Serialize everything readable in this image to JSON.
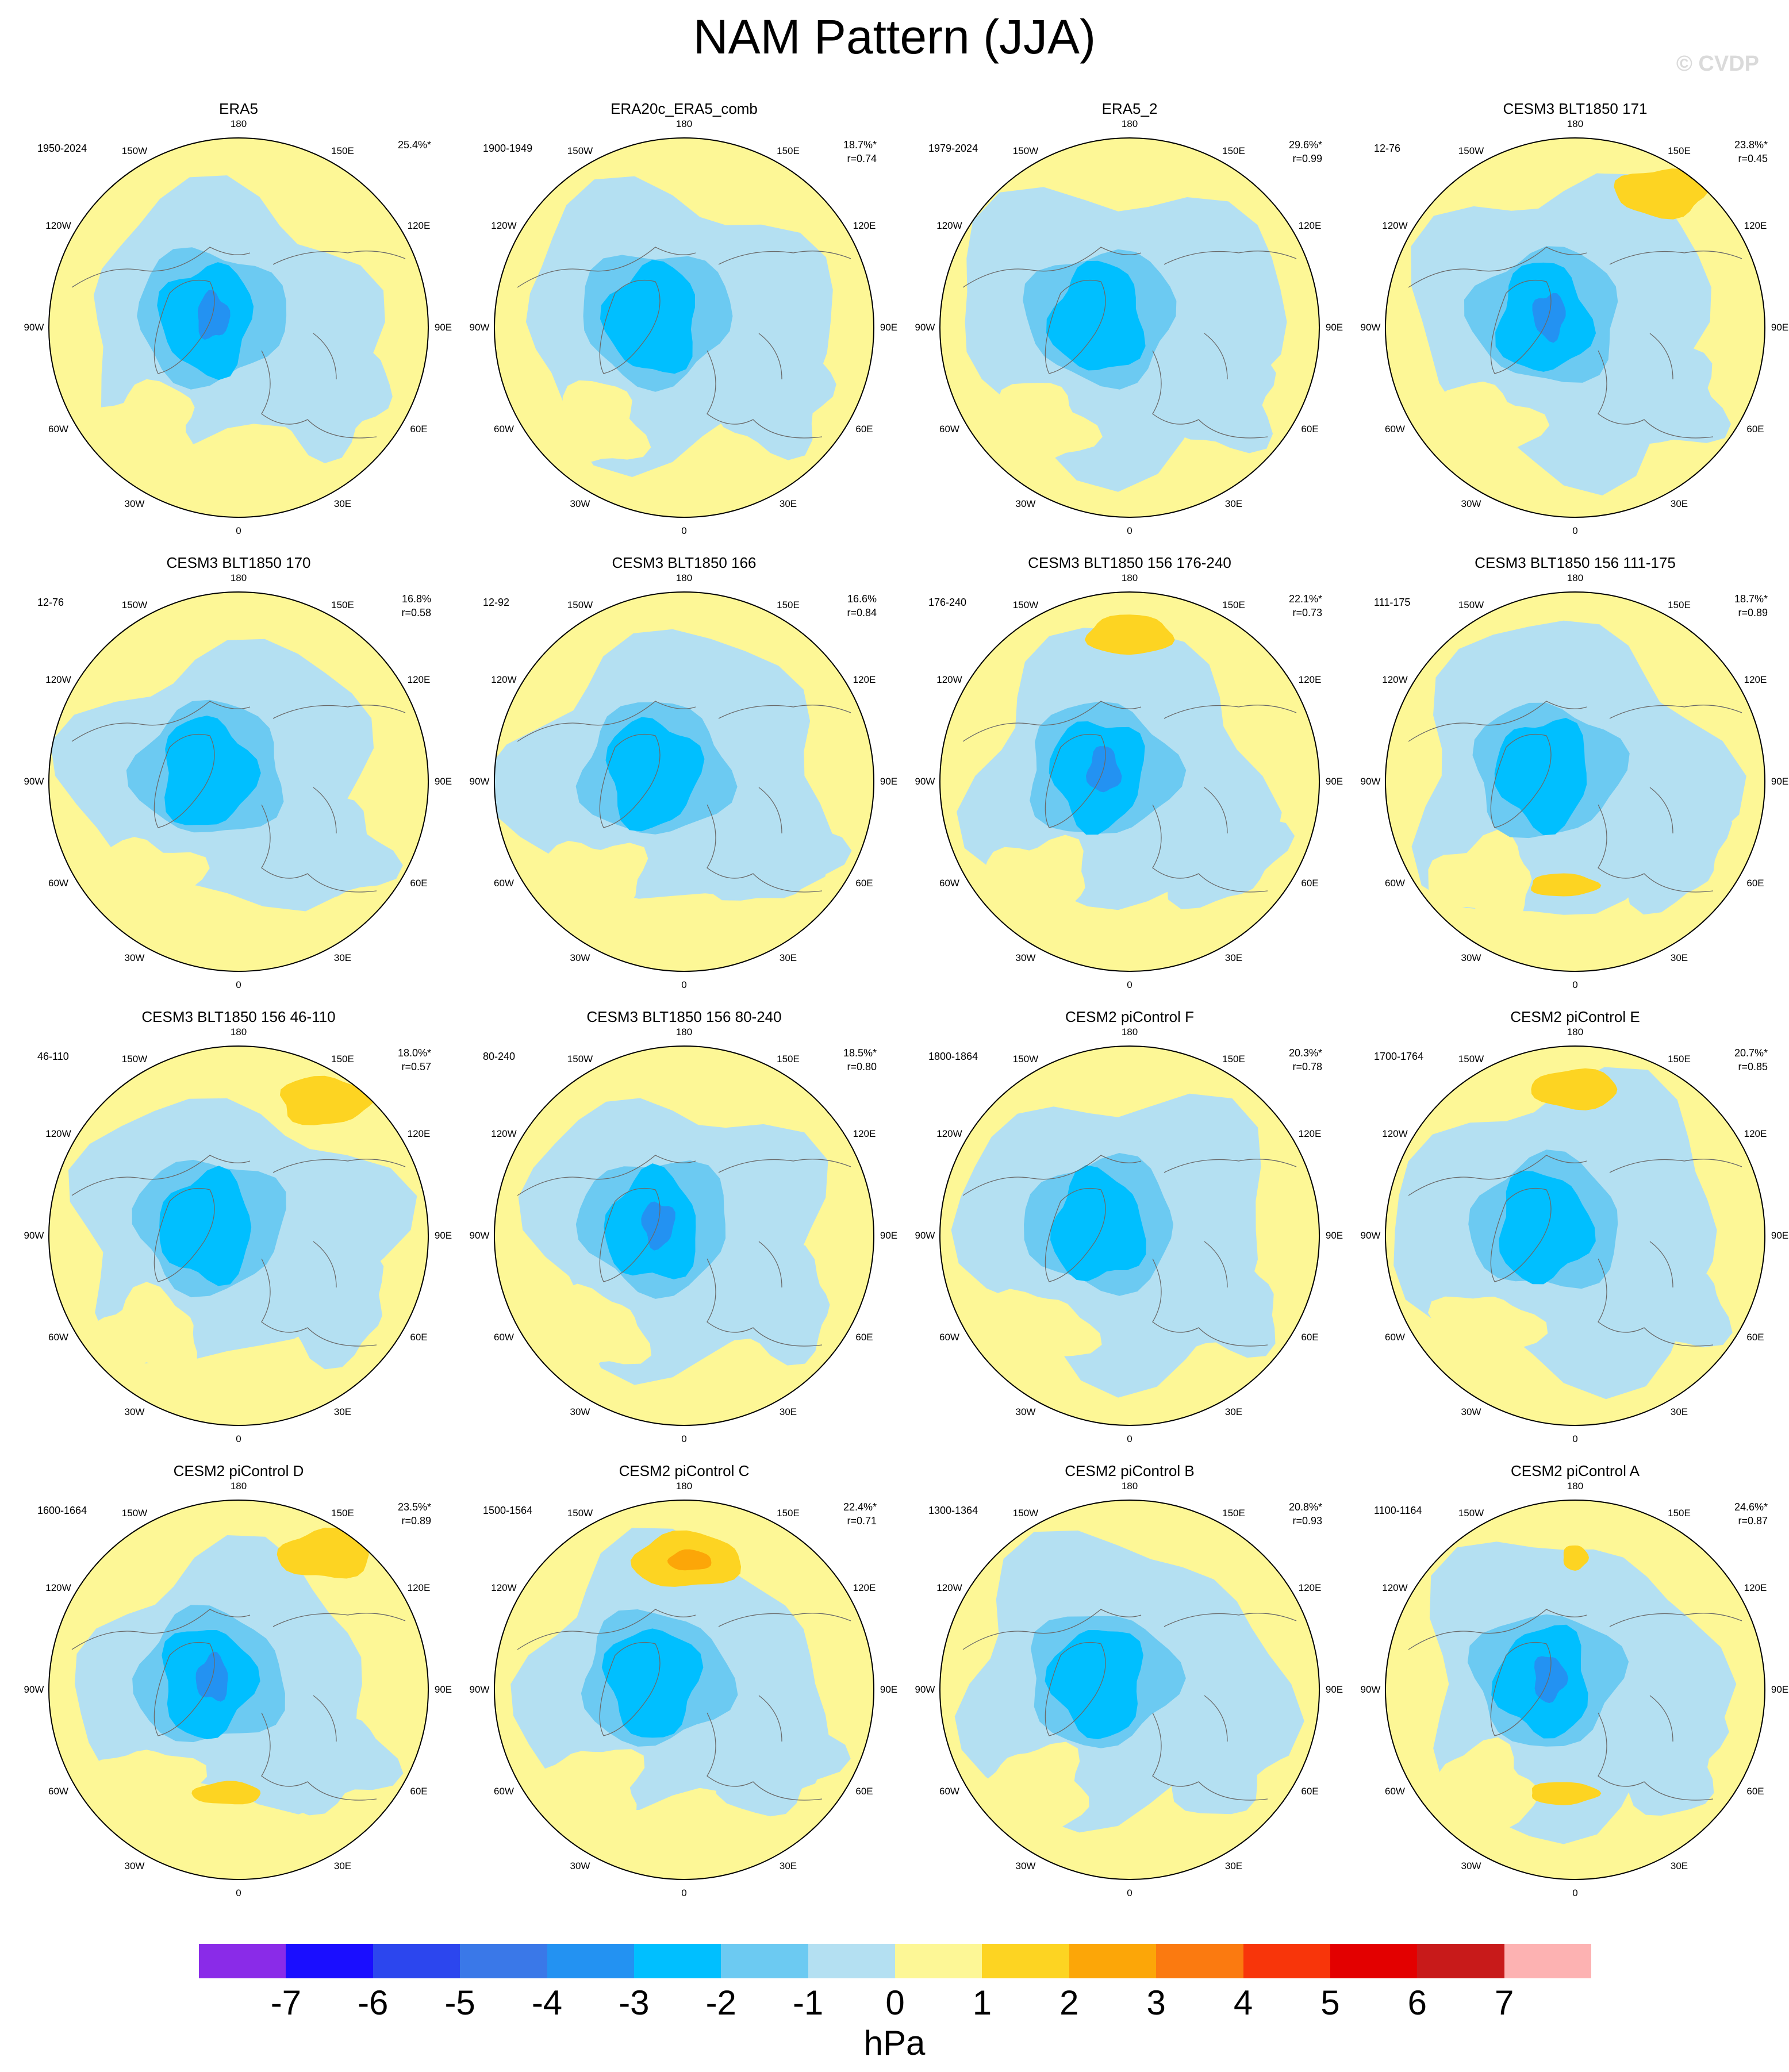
{
  "title": "NAM Pattern (JJA)",
  "watermark": "© CVDP",
  "lon_labels": [
    "180",
    "150E",
    "120E",
    "90E",
    "60E",
    "30E",
    "0",
    "30W",
    "60W",
    "90W",
    "120W",
    "150W"
  ],
  "panels": [
    {
      "title": "ERA5",
      "period": "1950-2024",
      "variance": "25.4%*",
      "corr": "",
      "warm": []
    },
    {
      "title": "ERA20c_ERA5_comb",
      "period": "1900-1949",
      "variance": "18.7%*",
      "corr": "r=0.74",
      "warm": []
    },
    {
      "title": "ERA5_2",
      "period": "1979-2024",
      "variance": "29.6%*",
      "corr": "r=0.99",
      "warm": []
    },
    {
      "title": "CESM3 BLT1850 171",
      "period": "12-76",
      "variance": "23.8%*",
      "corr": "r=0.45",
      "warm": [
        "north-east"
      ]
    },
    {
      "title": "CESM3 BLT1850 170",
      "period": "12-76",
      "variance": "16.8%",
      "corr": "r=0.58",
      "warm": []
    },
    {
      "title": "CESM3 BLT1850 166",
      "period": "12-92",
      "variance": "16.6%",
      "corr": "r=0.84",
      "warm": []
    },
    {
      "title": "CESM3 BLT1850 156 176-240",
      "period": "176-240",
      "variance": "22.1%*",
      "corr": "r=0.73",
      "warm": [
        "north"
      ]
    },
    {
      "title": "CESM3 BLT1850 156 111-175",
      "period": "111-175",
      "variance": "18.7%*",
      "corr": "r=0.89",
      "warm": [
        "south"
      ]
    },
    {
      "title": "CESM3 BLT1850 156 46-110",
      "period": "46-110",
      "variance": "18.0%*",
      "corr": "r=0.57",
      "warm": [
        "north-east"
      ]
    },
    {
      "title": "CESM3 BLT1850 156 80-240",
      "period": "80-240",
      "variance": "18.5%*",
      "corr": "r=0.80",
      "warm": []
    },
    {
      "title": "CESM2 piControl F",
      "period": "1800-1864",
      "variance": "20.3%*",
      "corr": "r=0.78",
      "warm": []
    },
    {
      "title": "CESM2 piControl E",
      "period": "1700-1764",
      "variance": "20.7%*",
      "corr": "r=0.85",
      "warm": [
        "north"
      ]
    },
    {
      "title": "CESM2 piControl D",
      "period": "1600-1664",
      "variance": "23.5%*",
      "corr": "r=0.89",
      "warm": [
        "north-east",
        "south"
      ]
    },
    {
      "title": "CESM2 piControl C",
      "period": "1500-1564",
      "variance": "22.4%*",
      "corr": "r=0.71",
      "warm": [
        "north-strong"
      ]
    },
    {
      "title": "CESM2 piControl B",
      "period": "1300-1364",
      "variance": "20.8%*",
      "corr": "r=0.93",
      "warm": []
    },
    {
      "title": "CESM2 piControl A",
      "period": "1100-1164",
      "variance": "24.6%*",
      "corr": "r=0.87",
      "warm": [
        "north-small",
        "south"
      ]
    }
  ],
  "colorbar": {
    "unit": "hPa",
    "labels": [
      "-7",
      "-6",
      "-5",
      "-4",
      "-3",
      "-2",
      "-1",
      "0",
      "1",
      "2",
      "3",
      "4",
      "5",
      "6",
      "7"
    ],
    "colors": [
      "#8a2be8",
      "#1a0eff",
      "#2c46ee",
      "#3a78e8",
      "#2392f2",
      "#00bfff",
      "#6ccaf2",
      "#b4e0f2",
      "#fdf796",
      "#fdd422",
      "#fca608",
      "#fb7a10",
      "#f8350a",
      "#e30000",
      "#c81a1a",
      "#fdb2b2"
    ]
  },
  "palette": {
    "land_ocean_light_neg": "#b4e0f2",
    "light_pos": "#fdf796",
    "mid_neg": "#6ccaf2",
    "strong_neg": "#00bfff",
    "deep_neg": "#2392f2",
    "warm": "#fdd422",
    "warm_strong": "#fca608"
  }
}
